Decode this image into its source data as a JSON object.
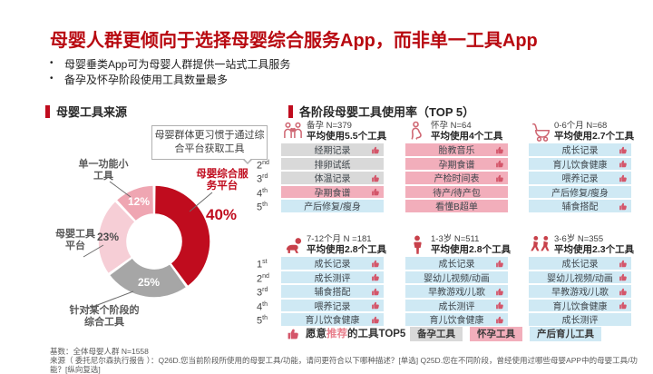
{
  "page": {
    "title": "母婴人群更倾向于选择母婴综合服务App，而非单一工具App",
    "bullets": [
      "母婴垂类App可为母婴人群提供一站式工具服务",
      "备孕及怀孕阶段使用工具数量最多"
    ]
  },
  "left_section": {
    "header": "母婴工具来源",
    "callout": "母婴群体更习惯于通过综合平台获取工具",
    "chart_data": {
      "type": "pie",
      "donut": true,
      "title": "母婴工具来源",
      "unit": "%",
      "start_angle": "12 o'clock, clockwise",
      "segments": [
        {
          "label": "母婴综合服务平台",
          "value": 40,
          "pct": "40%",
          "color": "#c00c1e",
          "emphasis": true
        },
        {
          "label": "针对某个阶段的综合工具",
          "value": 25,
          "pct": "25%",
          "color": "#a6a6a6"
        },
        {
          "label": "母婴工具平台",
          "value": 23,
          "pct": "23%",
          "color": "#f6ced6"
        },
        {
          "label": "单一功能小工具",
          "value": 12,
          "pct": "12%",
          "color": "#efa6b2"
        }
      ]
    }
  },
  "right_section": {
    "header": "各阶段母婴工具使用率（TOP 5）",
    "rank_labels": [
      {
        "n": "1",
        "s": "st"
      },
      {
        "n": "2",
        "s": "nd"
      },
      {
        "n": "3",
        "s": "rd"
      },
      {
        "n": "4",
        "s": "th"
      },
      {
        "n": "5",
        "s": "th"
      }
    ],
    "row_colors": {
      "prep": "#d9d9d9",
      "pregnancy": "#f2aebb",
      "postnatal": "#cfe9f4"
    },
    "thumb_color": "#d4566a",
    "stages": [
      {
        "icon": "couple-heart-icon",
        "label": "备孕 N=379",
        "avg": "平均使用5.5个工具",
        "tools": [
          {
            "label": "经期记录",
            "category": "prep",
            "recommended": true
          },
          {
            "label": "排卵试纸",
            "category": "prep",
            "recommended": false
          },
          {
            "label": "体温记录",
            "category": "prep",
            "recommended": true
          },
          {
            "label": "孕期食谱",
            "category": "pregnancy",
            "recommended": true
          },
          {
            "label": "产后修复/瘦身",
            "category": "postnatal",
            "recommended": false
          }
        ]
      },
      {
        "icon": "pregnant-woman-icon",
        "label": "怀孕 N=64",
        "avg": "平均使用4个工具",
        "tools": [
          {
            "label": "胎教音乐",
            "category": "pregnancy",
            "recommended": true
          },
          {
            "label": "孕期食谱",
            "category": "pregnancy",
            "recommended": true
          },
          {
            "label": "产检时间表",
            "category": "pregnancy",
            "recommended": true
          },
          {
            "label": "待产/待产包",
            "category": "pregnancy",
            "recommended": false
          },
          {
            "label": "看懂B超单",
            "category": "pregnancy",
            "recommended": false
          }
        ]
      },
      {
        "icon": "stroller-icon",
        "label": "0-6个月 N=68",
        "avg": "平均使用2.7个工具",
        "tools": [
          {
            "label": "成长记录",
            "category": "postnatal",
            "recommended": true
          },
          {
            "label": "育儿饮食健康",
            "category": "postnatal",
            "recommended": true
          },
          {
            "label": "喂养记录",
            "category": "postnatal",
            "recommended": true
          },
          {
            "label": "产后修复/瘦身",
            "category": "postnatal",
            "recommended": false
          },
          {
            "label": "辅食搭配",
            "category": "postnatal",
            "recommended": true
          }
        ]
      },
      {
        "icon": "crawling-baby-icon",
        "label": "7-12个月 N =181",
        "avg": "平均使用2.8个工具",
        "tools": [
          {
            "label": "成长记录",
            "category": "postnatal",
            "recommended": true
          },
          {
            "label": "成长测评",
            "category": "postnatal",
            "recommended": true
          },
          {
            "label": "辅食搭配",
            "category": "postnatal",
            "recommended": true
          },
          {
            "label": "喂养记录",
            "category": "postnatal",
            "recommended": true
          },
          {
            "label": "育儿饮食健康",
            "category": "postnatal",
            "recommended": true
          }
        ]
      },
      {
        "icon": "toddler-icon",
        "label": "1-3岁 N=511",
        "avg": "平均使用2.8个工具",
        "tools": [
          {
            "label": "成长记录",
            "category": "postnatal",
            "recommended": true
          },
          {
            "label": "婴幼儿视频/动画",
            "category": "postnatal",
            "recommended": false
          },
          {
            "label": "早教游戏/儿歌",
            "category": "postnatal",
            "recommended": true
          },
          {
            "label": "成长测评",
            "category": "postnatal",
            "recommended": true
          },
          {
            "label": "育儿饮食健康",
            "category": "postnatal",
            "recommended": true
          }
        ]
      },
      {
        "icon": "children-running-icon",
        "label": "3-6岁 N=355",
        "avg": "平均使用2.3个工具",
        "tools": [
          {
            "label": "成长记录",
            "category": "postnatal",
            "recommended": true
          },
          {
            "label": "婴幼儿视频/动画",
            "category": "postnatal",
            "recommended": true
          },
          {
            "label": "早教游戏/儿歌",
            "category": "postnatal",
            "recommended": true
          },
          {
            "label": "育儿饮食健康",
            "category": "postnatal",
            "recommended": true
          },
          {
            "label": "成长测评",
            "category": "postnatal",
            "recommended": false
          }
        ]
      }
    ],
    "legend": {
      "t1": "愿意",
      "t2": "推荐",
      "t3": "的工具TOP5",
      "chips": [
        {
          "label": "备孕工具",
          "category": "prep"
        },
        {
          "label": "怀孕工具",
          "category": "pregnancy"
        },
        {
          "label": "产后育儿工具",
          "category": "postnatal"
        }
      ]
    }
  },
  "footer": {
    "base": "基数：全体母婴人群 N=1558",
    "source": "来源（ 委托尼尔森执行报告 ）：Q26D.您当前阶段所使用的母婴工具/功能，请问更符合以下哪种描述？[单选] Q25D.您在不同阶段，曾经使用过哪些母婴APP中的母婴工具/功能？[纵向复选]"
  }
}
